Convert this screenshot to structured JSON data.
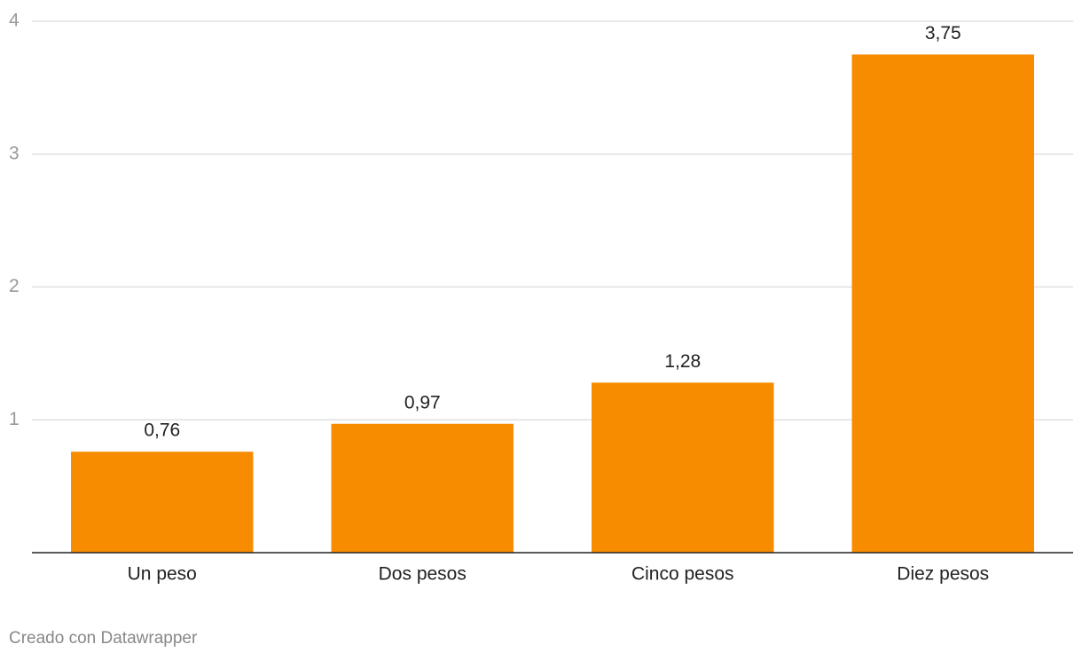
{
  "chart_data": {
    "type": "bar",
    "categories": [
      "Un peso",
      "Dos pesos",
      "Cinco pesos",
      "Diez pesos"
    ],
    "values": [
      0.76,
      0.97,
      1.28,
      3.75
    ],
    "value_labels": [
      "0,76",
      "0,97",
      "1,28",
      "3,75"
    ],
    "color": "#f78c00",
    "ylim": [
      0,
      4
    ],
    "yticks": [
      1,
      2,
      3,
      4
    ],
    "grid": true,
    "credit": "Creado con Datawrapper"
  }
}
